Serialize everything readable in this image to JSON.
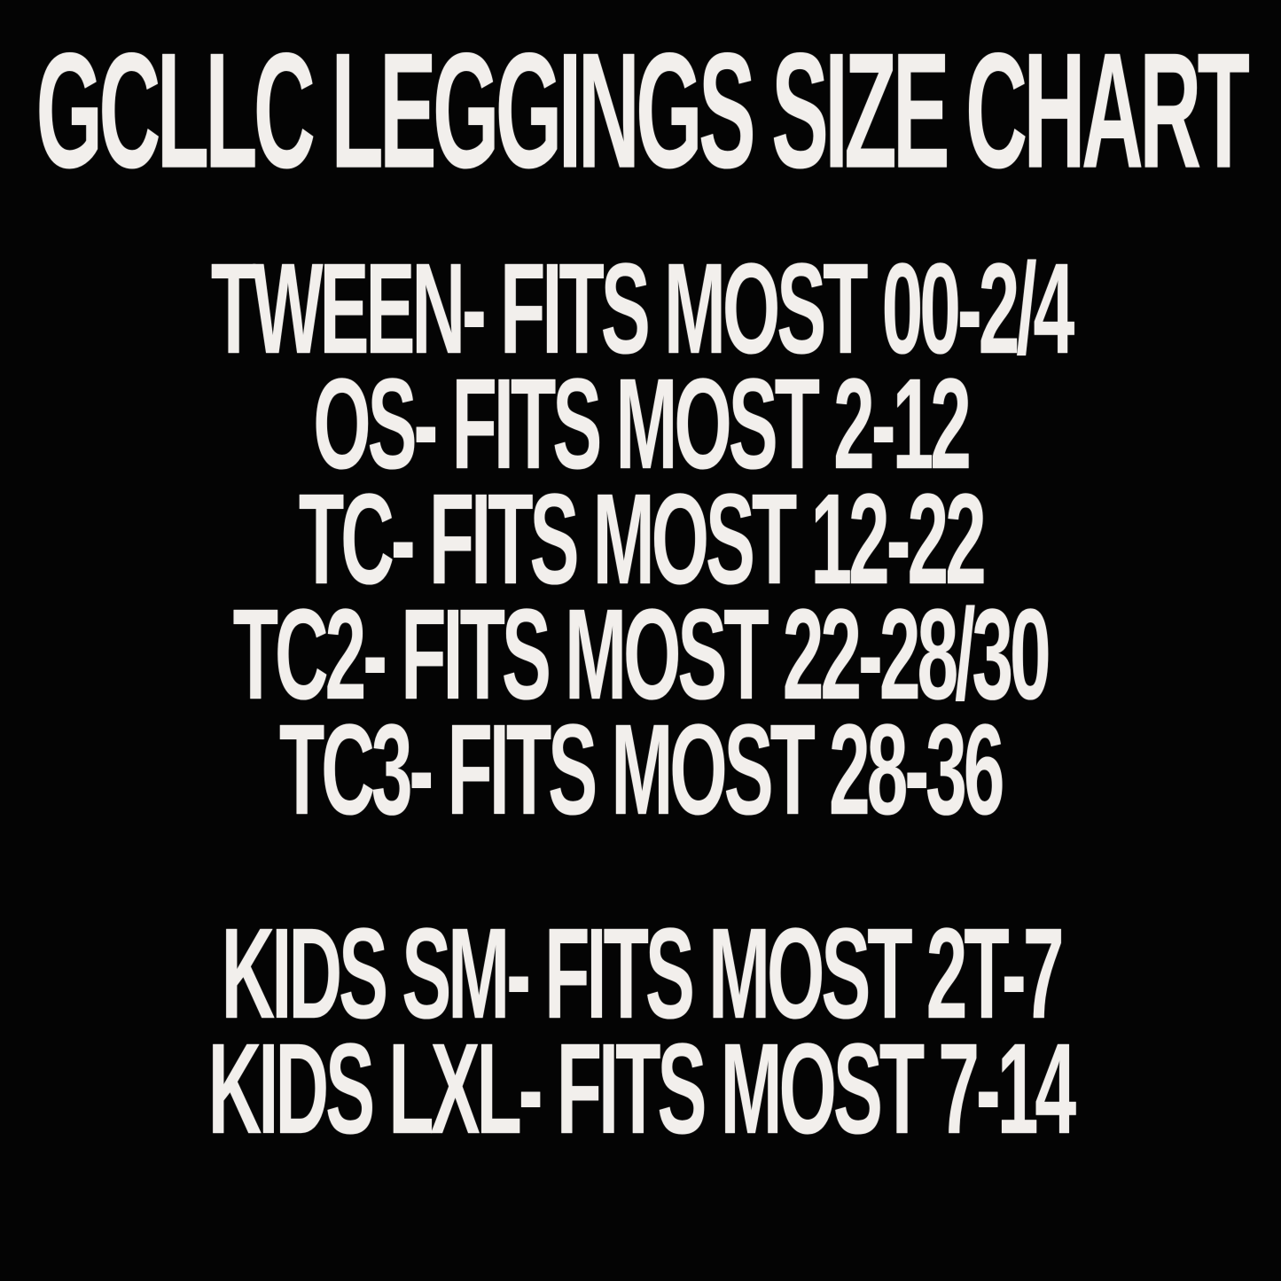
{
  "page": {
    "background_color": "#040404",
    "text_color": "#f2efec"
  },
  "title": "GCLLC LEGGINGS SIZE CHART",
  "size_chart": {
    "adult_sizes": [
      {
        "size": "TWEEN",
        "fits": "FITS MOST 00-2/4",
        "line": "TWEEN- FITS MOST 00-2/4"
      },
      {
        "size": "OS",
        "fits": "FITS MOST 2-12",
        "line": "OS- FITS MOST 2-12"
      },
      {
        "size": "TC",
        "fits": "FITS MOST 12-22",
        "line": "TC- FITS MOST 12-22"
      },
      {
        "size": "TC2",
        "fits": "FITS MOST 22-28/30",
        "line": "TC2- FITS MOST 22-28/30"
      },
      {
        "size": "TC3",
        "fits": "FITS MOST 28-36",
        "line": "TC3- FITS MOST 28-36"
      }
    ],
    "kids_sizes": [
      {
        "size": "KIDS SM",
        "fits": "FITS MOST 2T-7",
        "line": "KIDS SM- FITS MOST 2T-7"
      },
      {
        "size": "KIDS LXL",
        "fits": "FITS MOST 7-14",
        "line": "KIDS LXL- FITS MOST 7-14"
      }
    ]
  }
}
